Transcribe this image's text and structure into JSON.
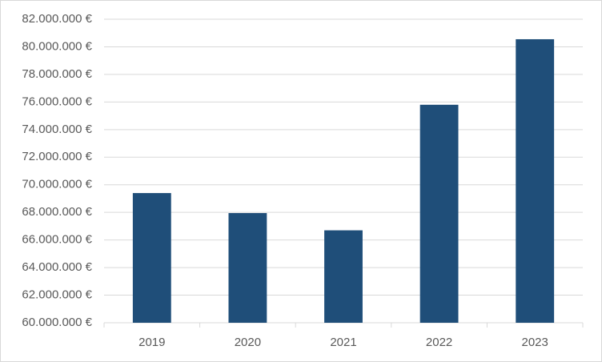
{
  "chart_data": {
    "type": "bar",
    "categories": [
      "2019",
      "2020",
      "2021",
      "2022",
      "2023"
    ],
    "values": [
      69400000,
      67950000,
      66700000,
      75800000,
      80550000
    ],
    "color": "#1f4e79",
    "ylim": [
      60000000,
      82000000
    ],
    "yticks": [
      {
        "value": 60000000,
        "label": "60.000.000 €"
      },
      {
        "value": 62000000,
        "label": "62.000.000 €"
      },
      {
        "value": 64000000,
        "label": "64.000.000 €"
      },
      {
        "value": 66000000,
        "label": "66.000.000 €"
      },
      {
        "value": 68000000,
        "label": "68.000.000 €"
      },
      {
        "value": 70000000,
        "label": "70.000.000 €"
      },
      {
        "value": 72000000,
        "label": "72.000.000 €"
      },
      {
        "value": 74000000,
        "label": "74.000.000 €"
      },
      {
        "value": 76000000,
        "label": "76.000.000 €"
      },
      {
        "value": 78000000,
        "label": "78.000.000 €"
      },
      {
        "value": 80000000,
        "label": "80.000.000 €"
      },
      {
        "value": 82000000,
        "label": "82.000.000 €"
      }
    ],
    "grid": true
  }
}
